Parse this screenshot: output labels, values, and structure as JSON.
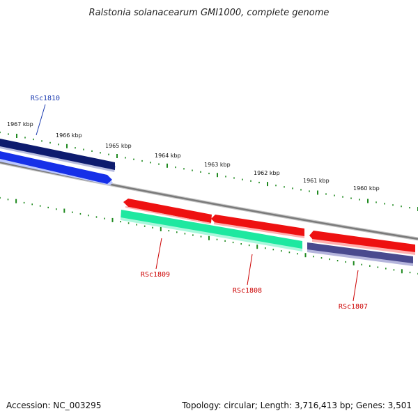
{
  "title": "Ralstonia solanacearum GMI1000, complete genome",
  "footer": {
    "accession": "Accession: NC_003295",
    "info": "Topology: circular; Length: 3,716,413 bp; Genes: 3,501"
  },
  "scale_labels": [
    "1967 kbp",
    "1966 kbp",
    "1965 kbp",
    "1964 kbp",
    "1963 kbp",
    "1962 kbp",
    "1961 kbp",
    "1960 kbp"
  ],
  "genes": [
    {
      "label": "RSc1810",
      "label_color": "#1a3ab0"
    },
    {
      "label": "RSc1809",
      "label_color": "#cc0000"
    },
    {
      "label": "RSc1808",
      "label_color": "#cc0000"
    },
    {
      "label": "RSc1807",
      "label_color": "#cc0000"
    }
  ],
  "colors": {
    "tick": "#1f8a1f",
    "backbone": "#8a8a8a",
    "navy": "#0d1b6e",
    "blue": "#1630e8",
    "red": "#ee1111",
    "mint": "#1ee8a0",
    "slate": "#4a4a8e"
  }
}
